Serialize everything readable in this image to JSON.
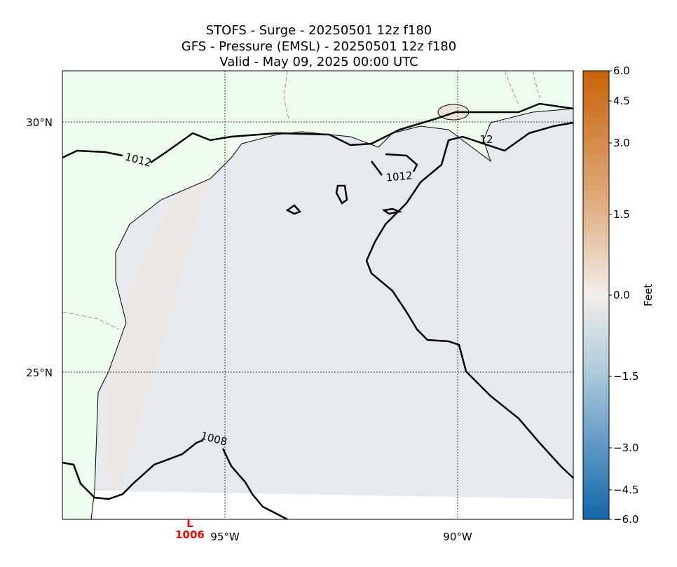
{
  "title": [
    "STOFS - Surge - 20250501 12z f180",
    "GFS -  Pressure (EMSL) - 20250501 12z f180",
    "Valid - May 09, 2025 00:00 UTC"
  ],
  "lat_labels": [
    "30°N",
    "25°N"
  ],
  "lon_labels": [
    "95°W",
    "90°W"
  ],
  "contour_labels": [
    "1012",
    "1012",
    "1008",
    "12"
  ],
  "low": {
    "symbol": "L",
    "pressure": "1006"
  },
  "colorbar": {
    "label": "Feet",
    "ticks": [
      "6.0",
      "4.5",
      "3.0",
      "1.5",
      "0.0",
      "−1.5",
      "−3.0",
      "−4.5",
      "−6.0"
    ]
  }
}
